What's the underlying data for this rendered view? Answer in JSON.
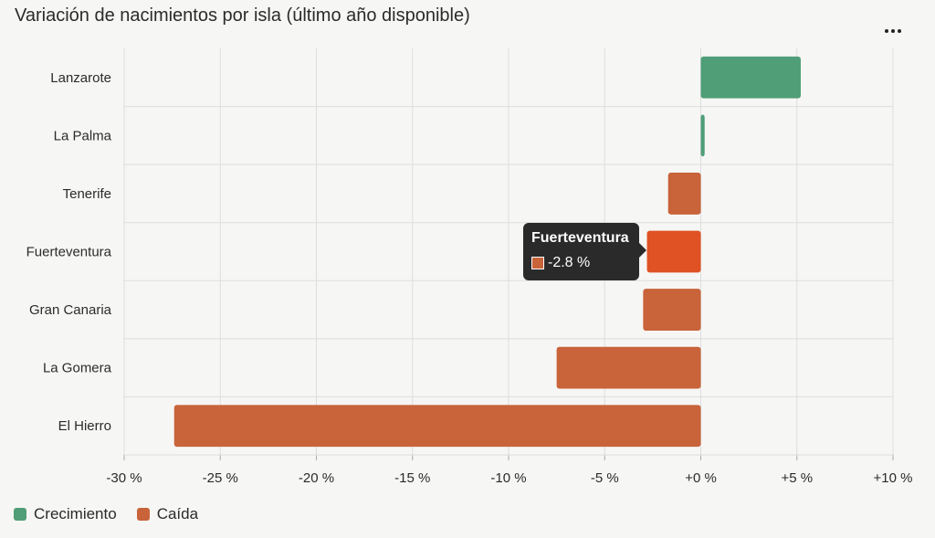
{
  "colors": {
    "growth": "#4f9e78",
    "decline": "#c8633a",
    "highlight": "#e05123",
    "grid": "#dddddd",
    "text": "#2b2b2b"
  },
  "menu": {
    "icon": "more-horizontal-icon"
  },
  "legend": [
    {
      "key": "growth",
      "label": "Crecimiento"
    },
    {
      "key": "decline",
      "label": "Caída"
    }
  ],
  "tooltip": {
    "title": "Fuerteventura",
    "value_label": "-2.8 %"
  },
  "chart_data": {
    "type": "bar",
    "orientation": "horizontal",
    "title": "Variación de nacimientos por isla (último año disponible)",
    "unit": "%",
    "categories": [
      "Lanzarote",
      "La Palma",
      "Tenerife",
      "Fuerteventura",
      "Gran Canaria",
      "La Gomera",
      "El Hierro"
    ],
    "values": [
      5.2,
      0.2,
      -1.7,
      -2.8,
      -3.0,
      -7.5,
      -27.4
    ],
    "xlim": [
      -30,
      10
    ],
    "xticks": [
      -30,
      -25,
      -20,
      -15,
      -10,
      -5,
      0,
      5,
      10
    ],
    "xtick_labels": [
      "-30 %",
      "-25 %",
      "-20 %",
      "-15 %",
      "-10 %",
      "-5 %",
      "+0 %",
      "+5 %",
      "+10 %"
    ],
    "grid": true,
    "legend_position": "bottom-left",
    "highlighted_category": "Fuerteventura"
  }
}
